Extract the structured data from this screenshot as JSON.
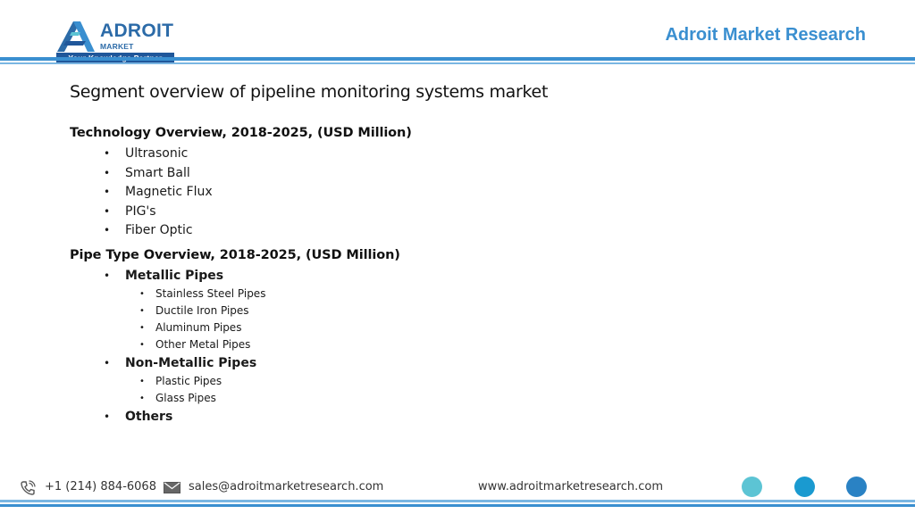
{
  "header": {
    "logo_name": "ADROIT",
    "logo_sub": "MARKET RESEARCH",
    "logo_tagline": "Your Knowledge Partner",
    "brand_right": "Adroit Market Research"
  },
  "title": "Segment overview of pipeline monitoring systems market",
  "technology": {
    "heading": "Technology Overview, 2018-2025, (USD Million)",
    "items": [
      "Ultrasonic",
      "Smart Ball",
      "Magnetic Flux",
      "PIG's",
      "Fiber Optic"
    ]
  },
  "pipe_type": {
    "heading": "Pipe Type Overview, 2018-2025, (USD Million)",
    "metallic": {
      "label": "Metallic Pipes",
      "items": [
        "Stainless Steel Pipes",
        "Ductile Iron Pipes",
        "Aluminum Pipes",
        "Other Metal Pipes"
      ]
    },
    "non_metallic": {
      "label": "Non-Metallic Pipes",
      "items": [
        "Plastic Pipes",
        "Glass Pipes"
      ]
    },
    "others": "Others"
  },
  "bullet": "•",
  "footer": {
    "phone": "+1 (214) 884-6068",
    "email": "sales@adroitmarketresearch.com",
    "website": "www.adroitmarketresearch.com",
    "phone_icon": "phone-icon",
    "email_icon": "envelope-icon"
  },
  "colors": {
    "brand_blue": "#3a8fd0",
    "dark_blue": "#20579a",
    "dot1": "#5cc4d4",
    "dot2": "#1a9ad0",
    "dot3": "#2a82c4"
  }
}
